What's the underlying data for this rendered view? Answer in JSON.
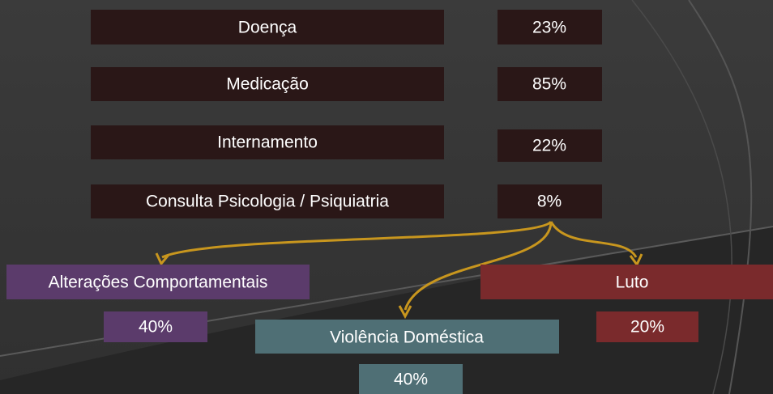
{
  "rows": [
    {
      "label": "Doença",
      "value": "23%"
    },
    {
      "label": "Medicação",
      "value": "85%"
    },
    {
      "label": "Internamento",
      "value": "22%"
    },
    {
      "label": "Consulta Psicologia / Psiquiatria",
      "value": "8%"
    }
  ],
  "branches": [
    {
      "label": "Alterações Comportamentais",
      "value": "40%"
    },
    {
      "label": "Violência Doméstica",
      "value": "40%"
    },
    {
      "label": "Luto",
      "value": "20%"
    }
  ]
}
